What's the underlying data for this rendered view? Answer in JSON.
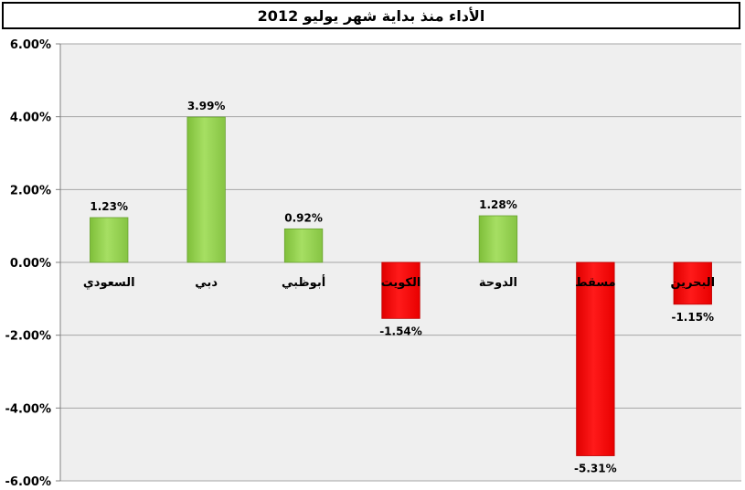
{
  "chart_data": {
    "type": "bar",
    "title": "الأداء منذ بداية شهر يوليو 2012",
    "categories": [
      "السعودي",
      "دبي",
      "أبوظبي",
      "الكويت",
      "الدوحة",
      "مسقط",
      "البحرين"
    ],
    "values": [
      1.23,
      3.99,
      0.92,
      -1.54,
      1.28,
      -5.31,
      -1.15
    ],
    "data_labels": [
      "1.23%",
      "3.99%",
      "0.92%",
      "-1.54%",
      "1.28%",
      "-5.31%",
      "-1.15%"
    ],
    "ylim": [
      -6,
      6
    ],
    "yticks": [
      6,
      4,
      2,
      0,
      -2,
      -4,
      -6
    ],
    "ytick_labels": [
      "6.00%",
      "4.00%",
      "2.00%",
      "0.00%",
      "-2.00%",
      "-4.00%",
      "-6.00%"
    ],
    "grid": true,
    "colors": {
      "positive": "#92D050",
      "negative": "#FF0000",
      "plot_background": "#EFEFEF",
      "gridline": "#A6A6A6"
    }
  }
}
